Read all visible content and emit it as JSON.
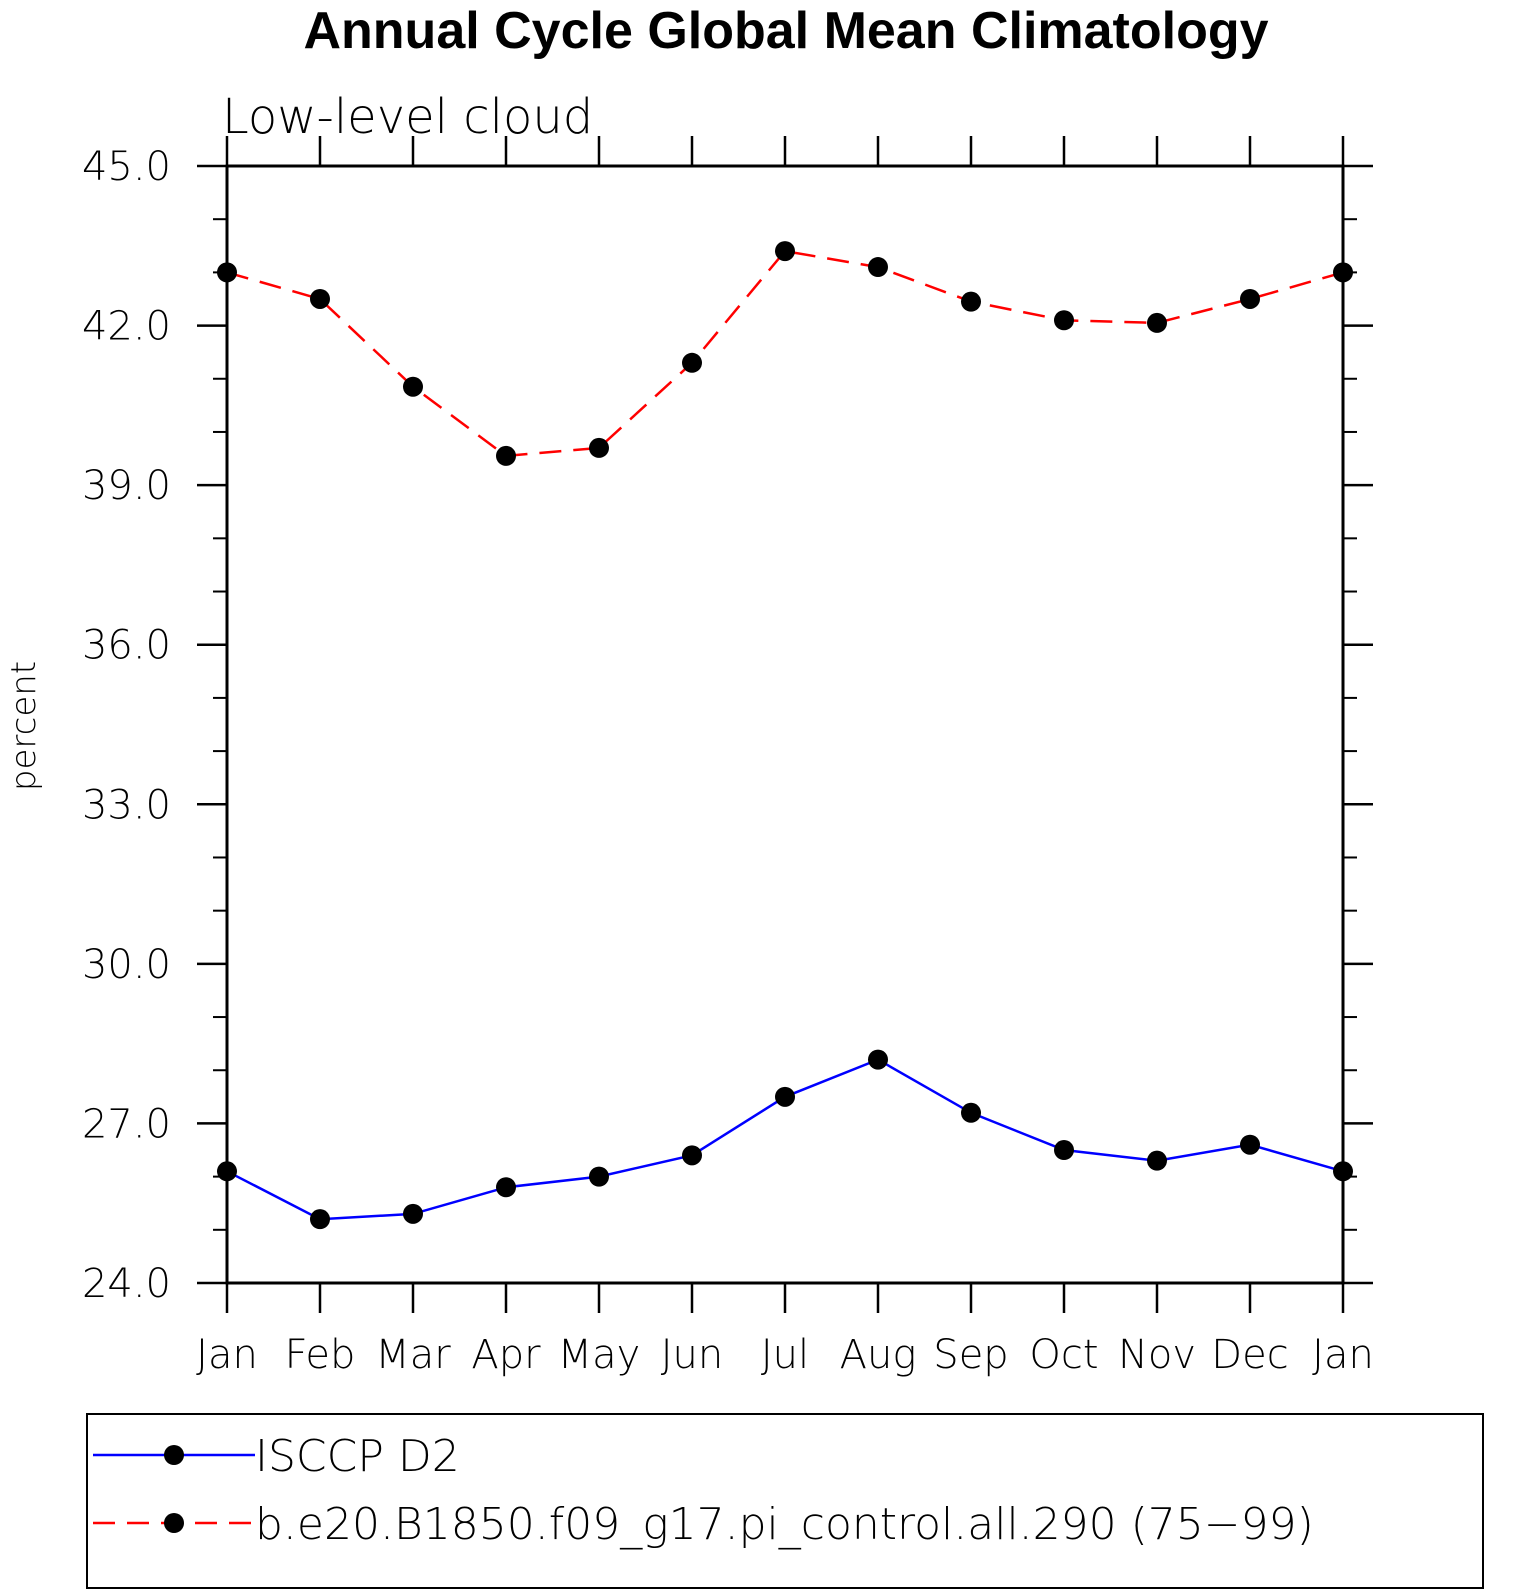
{
  "chart_data": {
    "type": "line",
    "title": "Annual Cycle Global Mean Climatology",
    "subtitle": "Low-level cloud",
    "xlabel": "",
    "ylabel": "percent",
    "categories": [
      "Jan",
      "Feb",
      "Mar",
      "Apr",
      "May",
      "Jun",
      "Jul",
      "Aug",
      "Sep",
      "Oct",
      "Nov",
      "Dec",
      "Jan"
    ],
    "ylim": [
      24.0,
      45.0
    ],
    "yticks": [
      "24.0",
      "27.0",
      "30.0",
      "33.0",
      "36.0",
      "39.0",
      "42.0",
      "45.0"
    ],
    "grid": false,
    "legend_position": "bottom",
    "series": [
      {
        "name": "ISCCP D2",
        "color": "#0000ff",
        "dash": "solid",
        "marker": "filled-circle",
        "values": [
          26.1,
          25.2,
          25.3,
          25.8,
          26.0,
          26.4,
          27.5,
          28.2,
          27.2,
          26.5,
          26.3,
          26.6,
          26.1
        ]
      },
      {
        "name": "b.e20.B1850.f09_g17.pi_control.all.290 (75−99)",
        "color": "#ff0000",
        "dash": "dashed",
        "marker": "filled-circle",
        "values": [
          43.0,
          42.5,
          40.85,
          39.55,
          39.7,
          41.3,
          43.4,
          43.1,
          42.45,
          42.1,
          42.05,
          42.5,
          43.0
        ]
      }
    ]
  }
}
